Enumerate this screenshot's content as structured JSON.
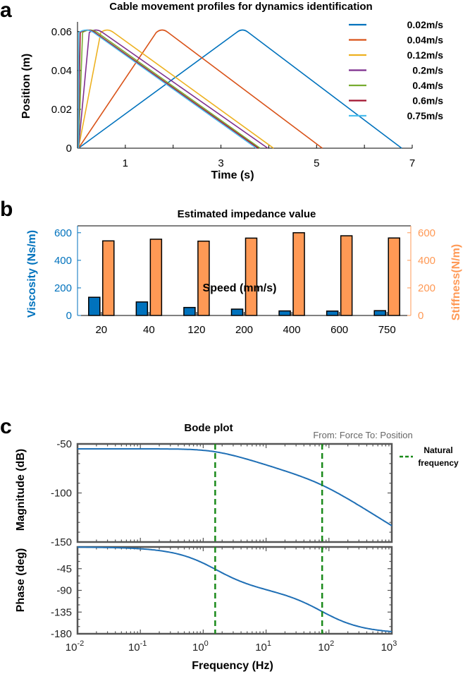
{
  "panel_letters": [
    "a",
    "b",
    "c"
  ],
  "colors": {
    "series": [
      "#0072BD",
      "#D95319",
      "#EDB120",
      "#7E2F8E",
      "#77AC30",
      "#A2142F",
      "#4DBEEE"
    ],
    "viscosity": "#0072BD",
    "stiffness": "#FF9955",
    "bode": "#1f6fb5",
    "natural_freq": "#1a8a1a",
    "gray_axis": "#555555"
  },
  "chart_data": [
    {
      "type": "line",
      "title": "Cable movement profiles for dynamics identification",
      "xlabel": "Time (s)",
      "ylabel": "Position (m)",
      "xlim": [
        0,
        7
      ],
      "ylim": [
        0,
        0.065
      ],
      "xticks": [
        "1",
        "3",
        "5",
        "7"
      ],
      "yticks": [
        "0",
        "0.02",
        "0.04",
        "0.06"
      ],
      "legend": "right",
      "series": [
        {
          "name": "0.02m/s",
          "x": [
            0.02,
            3.4,
            3.5,
            6.78
          ],
          "y": [
            0,
            0.061,
            0.061,
            0
          ]
        },
        {
          "name": "0.04m/s",
          "x": [
            0.02,
            1.72,
            1.82,
            5.12
          ],
          "y": [
            0,
            0.061,
            0.061,
            0
          ]
        },
        {
          "name": "0.12m/s",
          "x": [
            0.02,
            0.56,
            0.68,
            4.1
          ],
          "y": [
            0,
            0.061,
            0.061,
            0
          ]
        },
        {
          "name": "0.2m/s",
          "x": [
            0.02,
            0.32,
            0.45,
            3.98
          ],
          "y": [
            0,
            0.061,
            0.061,
            0
          ]
        },
        {
          "name": "0.4m/s",
          "x": [
            0.02,
            0.18,
            0.34,
            3.82
          ],
          "y": [
            0,
            0.061,
            0.061,
            0
          ]
        },
        {
          "name": "0.6m/s",
          "x": [
            0.02,
            0.13,
            0.29,
            3.78
          ],
          "y": [
            0,
            0.061,
            0.061,
            0
          ]
        },
        {
          "name": "0.75m/s",
          "x": [
            0.02,
            0.1,
            0.26,
            3.74
          ],
          "y": [
            0,
            0.061,
            0.061,
            0
          ]
        }
      ]
    },
    {
      "type": "bar",
      "title": "Estimated impedance value",
      "xlabel": "Speed (mm/s)",
      "ylabel": "Viscosity (Ns/m)",
      "ylabel_right": "Stiffness(N/m)",
      "categories": [
        "20",
        "40",
        "120",
        "200",
        "400",
        "600",
        "750"
      ],
      "ylim": [
        0,
        650
      ],
      "yticks": [
        "0",
        "200",
        "400",
        "600"
      ],
      "series": [
        {
          "name": "Viscosity",
          "axis": "left",
          "values": [
            132,
            98,
            58,
            46,
            33,
            32,
            35
          ]
        },
        {
          "name": "Stiffness",
          "axis": "right",
          "values": [
            541,
            553,
            539,
            561,
            600,
            578,
            562
          ]
        }
      ]
    },
    {
      "type": "line",
      "title": "Bode plot",
      "annotation": "From: Force To: Position",
      "xlabel": "Frequency (Hz)",
      "xscale": "log",
      "xlim": [
        0.01,
        1000
      ],
      "xticks": [
        {
          "base": "10",
          "exp": "-2"
        },
        {
          "base": "10",
          "exp": "-1"
        },
        {
          "base": "10",
          "exp": "0"
        },
        {
          "base": "10",
          "exp": "1"
        },
        {
          "base": "10",
          "exp": "2"
        },
        {
          "base": "10",
          "exp": "3"
        }
      ],
      "natural_frequencies": [
        1.55,
        78
      ],
      "legend_label": "Natural frequency",
      "magnitude": {
        "ylabel": "Magnitude (dB)",
        "ylim": [
          -150,
          -50
        ],
        "yticks": [
          "-150",
          "-100",
          "-50"
        ]
      },
      "phase": {
        "ylabel": "Phase (deg)",
        "ylim": [
          -180,
          0
        ],
        "yticks": [
          "-180",
          "-135",
          "-90",
          "-45"
        ]
      }
    }
  ]
}
